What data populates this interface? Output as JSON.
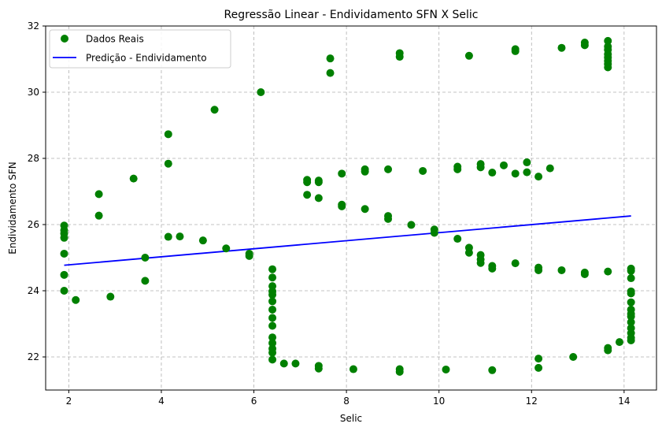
{
  "chart_data": {
    "type": "scatter",
    "title": "Regressão Linear - Endividamento SFN X Selic",
    "xlabel": "Selic",
    "ylabel": "Endividamento SFN",
    "xlim": [
      1.5,
      14.7
    ],
    "ylim": [
      21.0,
      32.0
    ],
    "xticks": [
      2,
      4,
      6,
      8,
      10,
      12,
      14
    ],
    "yticks": [
      22,
      24,
      26,
      28,
      30,
      32
    ],
    "grid": true,
    "legend_position": "top-left",
    "series": [
      {
        "name": "Dados Reais",
        "kind": "scatter",
        "color": "#008000",
        "x": [
          1.9,
          1.9,
          1.9,
          1.9,
          1.9,
          1.9,
          1.9,
          2.15,
          2.65,
          2.65,
          2.9,
          3.4,
          3.65,
          3.65,
          4.15,
          4.15,
          4.15,
          4.4,
          4.9,
          5.15,
          5.4,
          5.9,
          5.9,
          6.15,
          6.4,
          6.4,
          6.4,
          6.4,
          6.4,
          6.4,
          6.4,
          6.4,
          6.4,
          6.4,
          6.4,
          6.4,
          6.4,
          6.4,
          6.65,
          6.9,
          7.15,
          7.15,
          7.15,
          7.4,
          7.4,
          7.4,
          7.4,
          7.4,
          7.65,
          7.65,
          7.9,
          7.9,
          7.9,
          8.15,
          8.4,
          8.4,
          8.4,
          8.9,
          8.9,
          8.9,
          9.15,
          9.15,
          9.15,
          9.15,
          9.4,
          9.65,
          9.9,
          9.9,
          10.15,
          10.4,
          10.4,
          10.4,
          10.65,
          10.65,
          10.65,
          10.9,
          10.9,
          10.9,
          10.9,
          10.9,
          11.15,
          11.15,
          11.15,
          11.15,
          11.4,
          11.65,
          11.65,
          11.65,
          11.65,
          11.9,
          11.9,
          12.15,
          12.15,
          12.15,
          12.15,
          12.15,
          12.4,
          12.65,
          12.65,
          12.9,
          13.15,
          13.15,
          13.15,
          13.15,
          13.65,
          13.65,
          13.65,
          13.65,
          13.65,
          13.65,
          13.65,
          13.65,
          13.65,
          13.65,
          13.65,
          13.9,
          14.15,
          14.15,
          14.15,
          14.15,
          14.15,
          14.15,
          14.15,
          14.15,
          14.15,
          14.15,
          14.15,
          14.15,
          14.15,
          14.15
        ],
        "y": [
          25.97,
          25.83,
          25.6,
          25.12,
          24.48,
          24.0,
          25.73,
          23.72,
          26.92,
          26.27,
          23.82,
          27.39,
          25.0,
          24.3,
          28.73,
          27.84,
          25.63,
          25.64,
          25.52,
          29.47,
          25.28,
          25.12,
          25.05,
          30.0,
          24.65,
          24.4,
          24.14,
          23.88,
          23.68,
          23.43,
          23.18,
          22.94,
          22.59,
          22.42,
          22.25,
          22.13,
          21.92,
          23.98,
          21.8,
          21.8,
          27.35,
          27.28,
          26.9,
          27.33,
          27.28,
          26.8,
          21.73,
          21.65,
          31.02,
          30.58,
          27.54,
          26.6,
          26.55,
          21.63,
          27.67,
          27.6,
          26.47,
          27.67,
          26.26,
          26.17,
          31.18,
          31.07,
          21.63,
          21.55,
          25.99,
          27.62,
          25.85,
          25.75,
          21.62,
          27.75,
          27.67,
          25.57,
          25.3,
          25.15,
          31.1,
          27.83,
          27.73,
          25.08,
          24.95,
          24.84,
          27.57,
          24.75,
          24.67,
          21.6,
          27.79,
          31.3,
          31.24,
          27.54,
          24.83,
          27.88,
          27.58,
          27.45,
          24.7,
          24.62,
          21.95,
          21.67,
          27.7,
          31.34,
          24.62,
          22.0,
          31.5,
          31.42,
          24.55,
          24.5,
          31.55,
          31.38,
          31.28,
          31.15,
          31.05,
          30.95,
          30.85,
          30.75,
          24.58,
          22.27,
          22.2,
          22.45,
          24.67,
          24.6,
          24.38,
          23.98,
          23.92,
          23.65,
          23.43,
          23.22,
          23.05,
          22.87,
          22.72,
          22.5,
          22.58,
          23.3
        ]
      },
      {
        "name": "Predição - Endividamento",
        "kind": "line",
        "color": "#0000ff",
        "x": [
          1.9,
          14.15
        ],
        "y": [
          24.77,
          26.26
        ]
      }
    ]
  }
}
